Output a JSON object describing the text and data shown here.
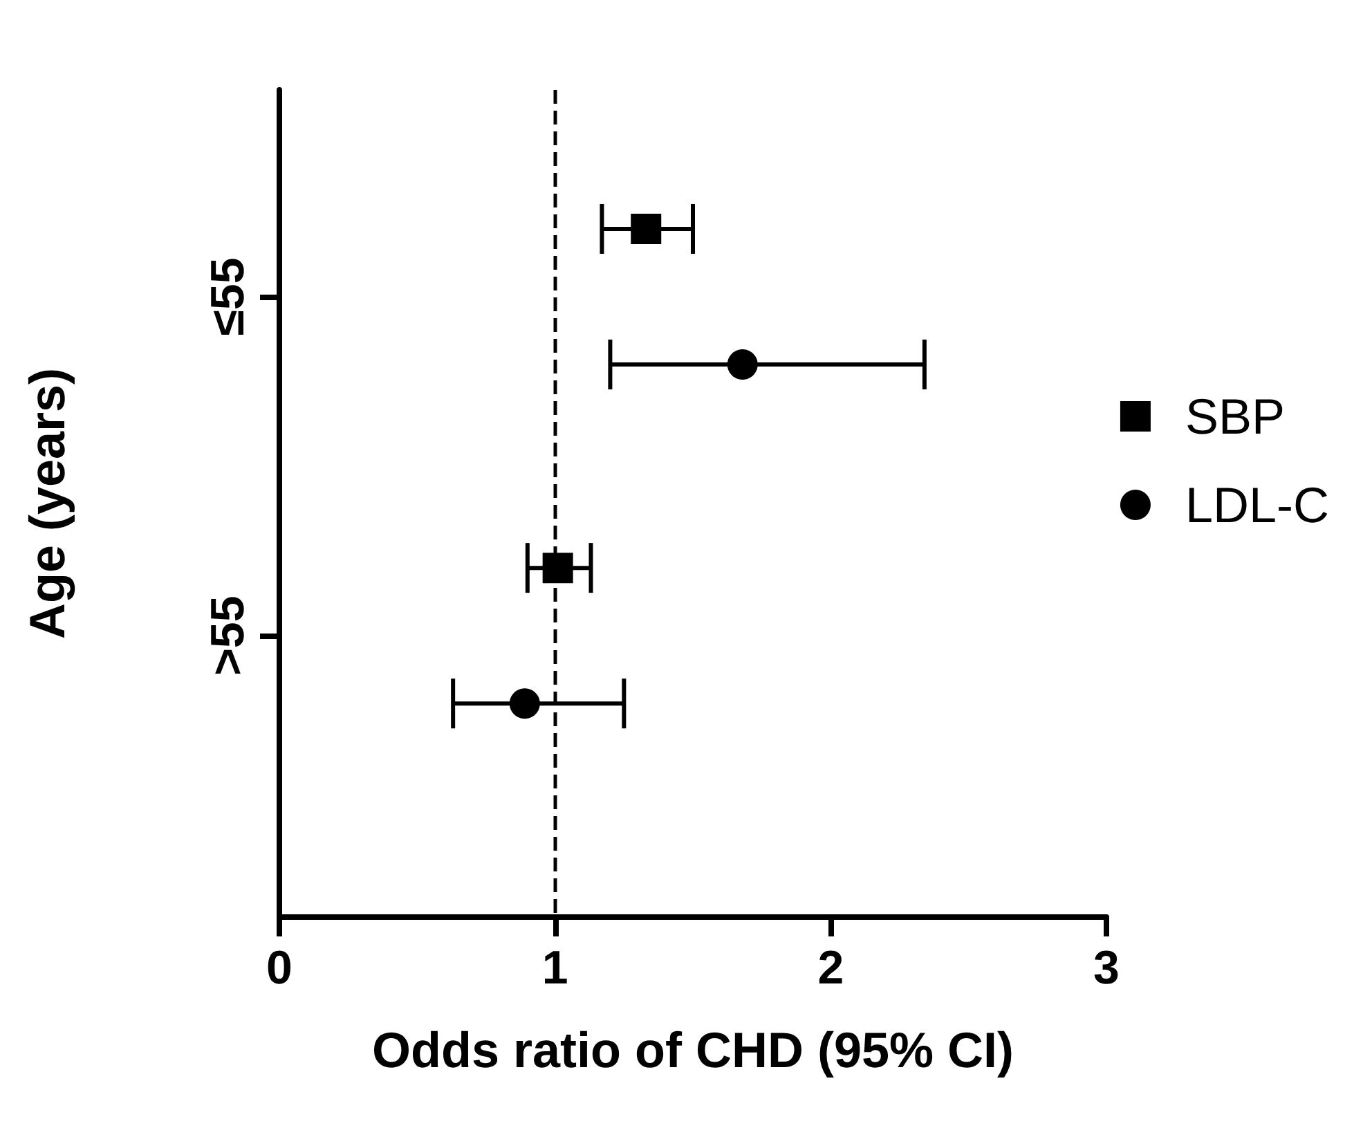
{
  "chart_data": {
    "type": "scatter",
    "orientation": "horizontal",
    "xlabel": "Odds ratio of CHD (95% CI)",
    "ylabel": "Age (years)",
    "categories": [
      "≤55",
      ">55"
    ],
    "series": [
      {
        "name": "SBP",
        "color": "#000000",
        "marker": "square",
        "values": [
          1.33,
          1.01
        ],
        "errors": [
          [
            1.17,
            1.5
          ],
          [
            0.9,
            1.13
          ]
        ]
      },
      {
        "name": "LDL-C",
        "color": "#000000",
        "marker": "circle",
        "values": [
          1.68,
          0.89
        ],
        "errors": [
          [
            1.2,
            2.34
          ],
          [
            0.63,
            1.25
          ]
        ]
      }
    ],
    "xlim": [
      0,
      3
    ],
    "xticks": [
      0,
      1,
      2,
      3
    ],
    "grid": false,
    "legend": "right",
    "ref_lines": [
      {
        "axis": "x",
        "value": 1,
        "line_style": "dashed",
        "color": "#000000"
      }
    ]
  }
}
